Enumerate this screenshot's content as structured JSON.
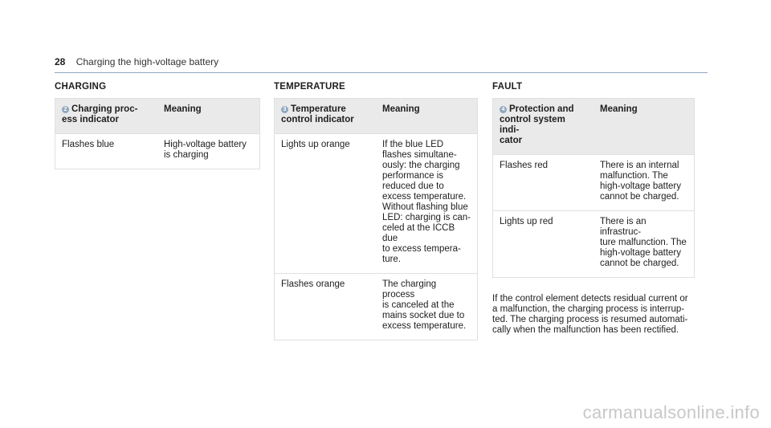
{
  "header": {
    "page_number": "28",
    "title": "Charging the high-voltage battery"
  },
  "charging": {
    "title": "CHARGING",
    "badge": "2",
    "col1_header": "Charging proc-\ness indicator",
    "col2_header": "Meaning",
    "rows": [
      {
        "state": "Flashes blue",
        "meaning": "High-voltage battery\nis charging"
      }
    ]
  },
  "temperature": {
    "title": "TEMPERATURE",
    "badge": "3",
    "col1_header": "Temperature\ncontrol indicator",
    "col2_header": "Meaning",
    "rows": [
      {
        "state": "Lights up orange",
        "meaning": "If the blue LED\nflashes simultane-\nously: the charging\nperformance is\nreduced due to\nexcess temperature.\nWithout flashing blue\nLED: charging is can-\nceled at the ICCB due\nto excess tempera-\nture."
      },
      {
        "state": "Flashes orange",
        "meaning": "The charging process\nis canceled at the\nmains socket due to\nexcess temperature."
      }
    ]
  },
  "fault": {
    "title": "FAULT",
    "badge": "4",
    "col1_header": "Protection and\ncontrol system indi-\ncator",
    "col2_header": "Meaning",
    "rows": [
      {
        "state": "Flashes red",
        "meaning": "There is an internal\nmalfunction. The\nhigh-voltage battery\ncannot be charged."
      },
      {
        "state": "Lights up red",
        "meaning": "There is an infrastruc-\nture malfunction. The\nhigh-voltage battery\ncannot be charged."
      }
    ],
    "note": "If the control element detects residual current or\na malfunction, the charging process is interrup-\nted. The charging process is resumed automati-\ncally when the malfunction has been rectified."
  },
  "watermark": "carmanualsonline.info"
}
